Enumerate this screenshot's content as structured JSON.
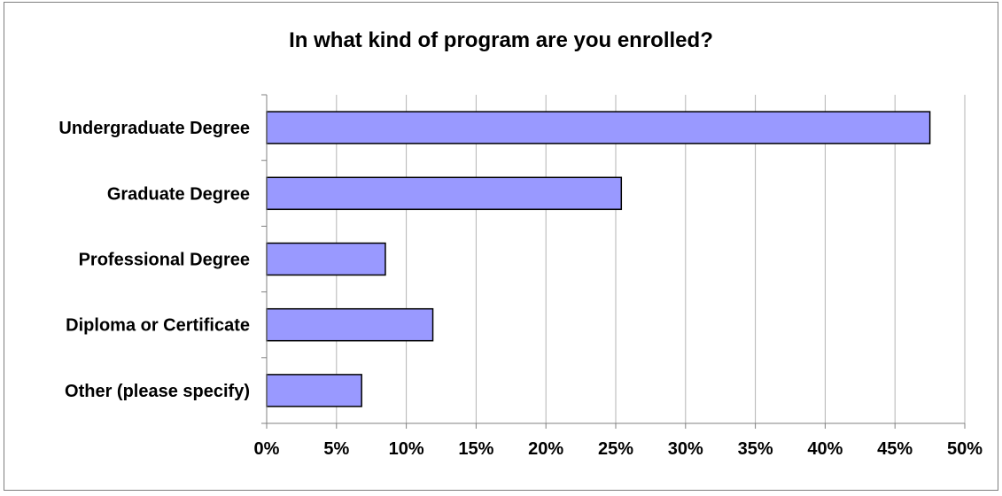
{
  "chart_data": {
    "type": "bar",
    "orientation": "horizontal",
    "title": "In what kind of program are you enrolled?",
    "xlabel": "",
    "ylabel": "",
    "categories": [
      "Undergraduate Degree",
      "Graduate Degree",
      "Professional Degree",
      "Diploma or Certificate",
      "Other (please specify)"
    ],
    "values": [
      47.5,
      25.4,
      8.5,
      11.9,
      6.8
    ],
    "unit": "%",
    "xlim": [
      0,
      50
    ],
    "xticks": [
      "0%",
      "5%",
      "10%",
      "15%",
      "20%",
      "25%",
      "30%",
      "35%",
      "40%",
      "45%",
      "50%"
    ],
    "grid": "vertical",
    "legend": "none",
    "bar_color": "#9999ff",
    "bar_border_color": "#000000"
  }
}
